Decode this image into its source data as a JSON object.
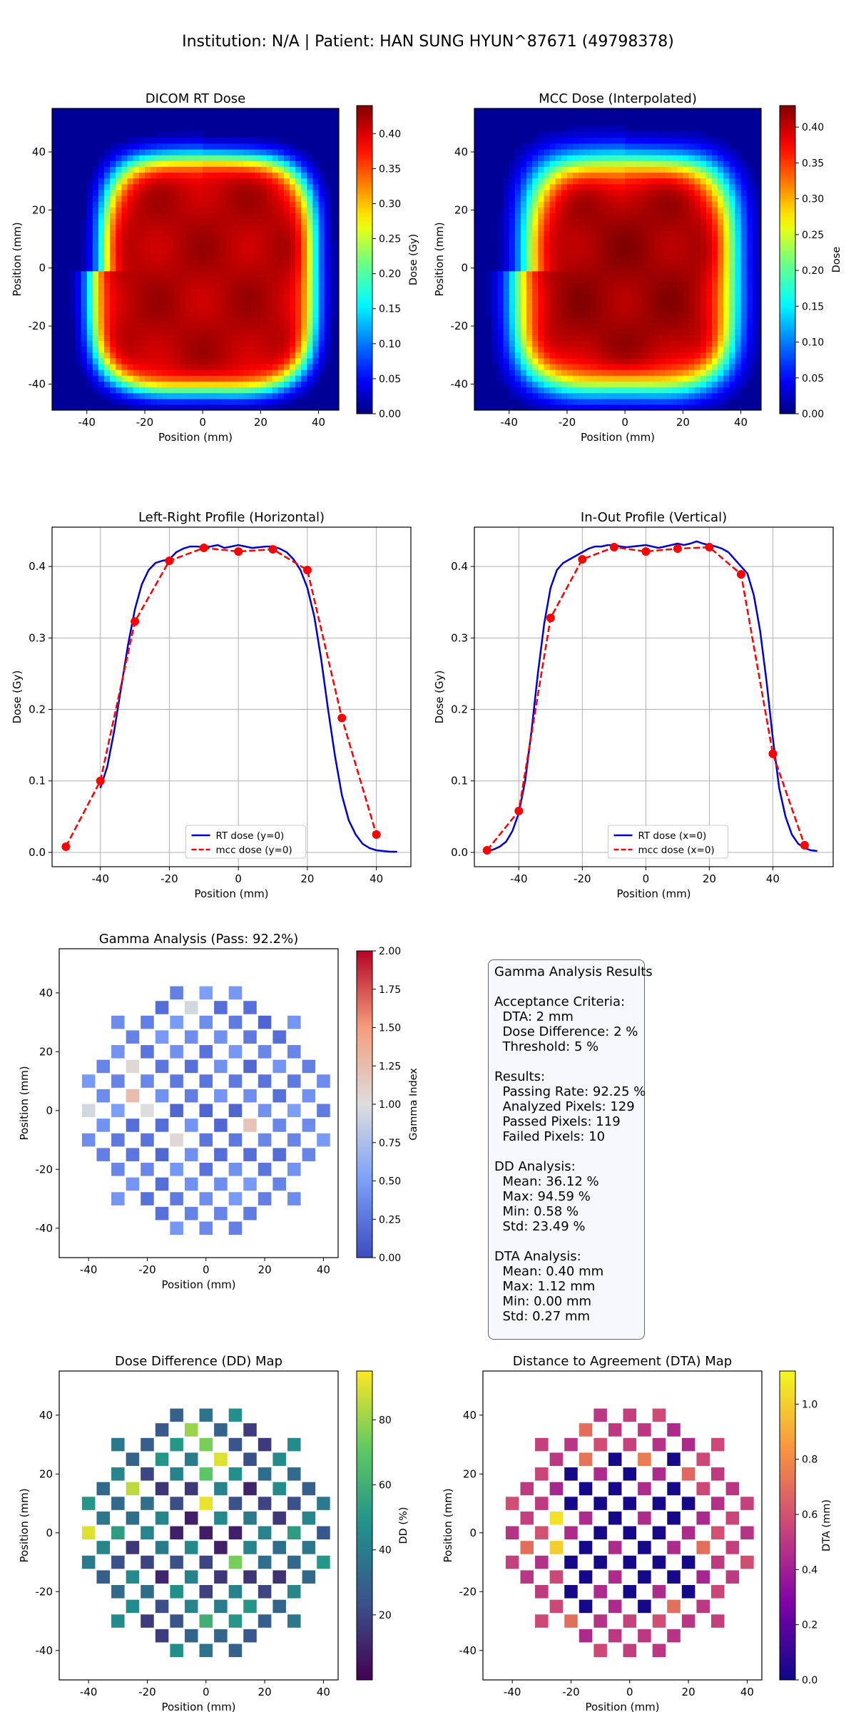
{
  "figure": {
    "suptitle": "Institution: N/A | Patient: HAN SUNG HYUN^87671 (49798378)"
  },
  "stats_box": {
    "lines": [
      "Gamma Analysis Results",
      "",
      "Acceptance Criteria:",
      "  DTA: 2 mm",
      "  Dose Difference: 2 %",
      "  Threshold: 5 %",
      "",
      "Results:",
      "  Passing Rate: 92.25 %",
      "  Analyzed Pixels: 129",
      "  Passed Pixels: 119",
      "  Failed Pixels: 10",
      "",
      "DD Analysis:",
      "  Mean: 36.12 %",
      "  Max: 94.59 %",
      "  Min: 0.58 %",
      "  Std: 23.49 %",
      "",
      "DTA Analysis:",
      "  Mean: 0.40 mm",
      "  Max: 1.12 mm",
      "  Min: 0.00 mm",
      "  Std: 0.27 mm"
    ]
  },
  "chart_data": [
    {
      "id": "rt",
      "type": "heatmap",
      "title": "DICOM RT Dose",
      "xlabel": "Position (mm)",
      "ylabel": "Position (mm)",
      "xlim": [
        -52,
        47
      ],
      "ylim": [
        -49,
        55
      ],
      "xticks": [
        -40,
        -20,
        0,
        20,
        40
      ],
      "yticks": [
        -40,
        -20,
        0,
        20,
        40
      ],
      "colormap": "jet",
      "colorbar": {
        "label": "Dose (Gy)",
        "min": 0,
        "max": 0.44,
        "ticks": [
          "0.00",
          "0.05",
          "0.10",
          "0.15",
          "0.20",
          "0.25",
          "0.30",
          "0.35",
          "0.40"
        ]
      },
      "field": {
        "peak_gy": 0.43,
        "half_width_x_mm": 38,
        "half_width_y_mm": 40,
        "center_mm": [
          0,
          -2
        ],
        "penumbra_mm": 5
      }
    },
    {
      "id": "mcc",
      "type": "heatmap",
      "title": "MCC Dose (Interpolated)",
      "xlabel": "Position (mm)",
      "ylabel": "Position (mm)",
      "xlim": [
        -52,
        47
      ],
      "ylim": [
        -49,
        55
      ],
      "xticks": [
        -40,
        -20,
        0,
        20,
        40
      ],
      "yticks": [
        -40,
        -20,
        0,
        20,
        40
      ],
      "colormap": "jet",
      "colorbar": {
        "label": "Dose",
        "min": 0,
        "max": 0.43,
        "ticks": [
          "0.00",
          "0.05",
          "0.10",
          "0.15",
          "0.20",
          "0.25",
          "0.30",
          "0.35",
          "0.40"
        ]
      },
      "field": {
        "peak_gy": 0.43,
        "half_width_x_mm": 37,
        "half_width_y_mm": 39,
        "center_mm": [
          0,
          -2
        ],
        "penumbra_mm": 7
      }
    },
    {
      "id": "lr",
      "type": "line",
      "title": "Left-Right Profile (Horizontal)",
      "xlabel": "Position (mm)",
      "ylabel": "Dose (Gy)",
      "xlim": [
        -54,
        50
      ],
      "ylim": [
        -0.02,
        0.455
      ],
      "xticks": [
        -40,
        -20,
        0,
        20,
        40
      ],
      "yticks": [
        0.0,
        0.1,
        0.2,
        0.3,
        0.4
      ],
      "yticklabels": [
        "0.0",
        "0.1",
        "0.2",
        "0.3",
        "0.4"
      ],
      "grid": true,
      "legend": "lower center",
      "series": [
        {
          "name": "RT dose (y=0)",
          "color": "#0000cc",
          "style": "solid",
          "x": [
            -40,
            -38,
            -36,
            -34,
            -32,
            -30,
            -28,
            -26,
            -24,
            -22,
            -20,
            -18,
            -16,
            -14,
            -12,
            -10,
            -8,
            -6,
            -4,
            -2,
            0,
            2,
            4,
            6,
            8,
            10,
            12,
            14,
            16,
            18,
            20,
            22,
            24,
            26,
            28,
            30,
            32,
            34,
            36,
            38,
            40,
            42,
            44,
            46
          ],
          "y": [
            0.09,
            0.12,
            0.17,
            0.23,
            0.29,
            0.34,
            0.375,
            0.395,
            0.405,
            0.408,
            0.41,
            0.42,
            0.425,
            0.428,
            0.428,
            0.427,
            0.428,
            0.43,
            0.426,
            0.428,
            0.43,
            0.428,
            0.426,
            0.427,
            0.428,
            0.428,
            0.425,
            0.42,
            0.41,
            0.395,
            0.37,
            0.33,
            0.27,
            0.2,
            0.135,
            0.08,
            0.045,
            0.025,
            0.012,
            0.006,
            0.003,
            0.002,
            0.001,
            0.001
          ]
        },
        {
          "name": "mcc dose (y=0)",
          "color": "#ff0000",
          "style": "dashed",
          "markers": true,
          "x": [
            -50,
            -40,
            -30,
            -20,
            -10,
            0,
            10,
            20,
            30,
            40
          ],
          "y": [
            0.008,
            0.1,
            0.323,
            0.408,
            0.426,
            0.421,
            0.424,
            0.395,
            0.188,
            0.025
          ]
        }
      ]
    },
    {
      "id": "io",
      "type": "line",
      "title": "In-Out Profile (Vertical)",
      "xlabel": "Position (mm)",
      "ylabel": "Dose (Gy)",
      "xlim": [
        -54,
        59
      ],
      "ylim": [
        -0.02,
        0.455
      ],
      "xticks": [
        -40,
        -20,
        0,
        20,
        40
      ],
      "yticks": [
        0.0,
        0.1,
        0.2,
        0.3,
        0.4
      ],
      "yticklabels": [
        "0.0",
        "0.1",
        "0.2",
        "0.3",
        "0.4"
      ],
      "grid": true,
      "legend": "lower center",
      "series": [
        {
          "name": "RT dose (x=0)",
          "color": "#0000cc",
          "style": "solid",
          "x": [
            -50,
            -48,
            -46,
            -44,
            -42,
            -40,
            -38,
            -36,
            -34,
            -32,
            -30,
            -28,
            -26,
            -24,
            -22,
            -20,
            -18,
            -16,
            -14,
            -12,
            -10,
            -8,
            -6,
            -4,
            -2,
            0,
            2,
            4,
            6,
            8,
            10,
            12,
            14,
            16,
            18,
            20,
            22,
            24,
            26,
            28,
            30,
            32,
            34,
            36,
            38,
            40,
            42,
            44,
            46,
            48,
            50,
            52,
            54
          ],
          "y": [
            0.002,
            0.004,
            0.008,
            0.015,
            0.03,
            0.055,
            0.1,
            0.17,
            0.25,
            0.32,
            0.37,
            0.395,
            0.405,
            0.41,
            0.415,
            0.42,
            0.425,
            0.428,
            0.428,
            0.43,
            0.43,
            0.428,
            0.427,
            0.428,
            0.429,
            0.43,
            0.428,
            0.426,
            0.428,
            0.43,
            0.432,
            0.43,
            0.432,
            0.435,
            0.432,
            0.43,
            0.428,
            0.425,
            0.42,
            0.41,
            0.4,
            0.39,
            0.36,
            0.31,
            0.24,
            0.16,
            0.09,
            0.05,
            0.025,
            0.012,
            0.006,
            0.003,
            0.002
          ]
        },
        {
          "name": "mcc dose (x=0)",
          "color": "#ff0000",
          "style": "dashed",
          "markers": true,
          "x": [
            -50,
            -40,
            -30,
            -20,
            -10,
            0,
            10,
            20,
            30,
            40,
            50
          ],
          "y": [
            0.003,
            0.058,
            0.328,
            0.41,
            0.427,
            0.421,
            0.425,
            0.427,
            0.389,
            0.138,
            0.01
          ]
        }
      ]
    },
    {
      "id": "gamma",
      "type": "heatmap",
      "title": "Gamma Analysis (Pass: 92.2%)",
      "xlabel": "Position (mm)",
      "ylabel": "Position (mm)",
      "xlim": [
        -50,
        45
      ],
      "ylim": [
        -50,
        55
      ],
      "xticks": [
        -40,
        -20,
        0,
        20,
        40
      ],
      "yticks": [
        -40,
        -20,
        0,
        20,
        40
      ],
      "colormap": "coolwarm",
      "colorbar": {
        "label": "Gamma Index",
        "min": 0,
        "max": 2,
        "ticks": [
          "0.00",
          "0.25",
          "0.50",
          "0.75",
          "1.00",
          "1.25",
          "1.50",
          "1.75",
          "2.00"
        ]
      },
      "grid_spacing_mm": 5,
      "cell_mm": 4.5,
      "radius_mm": 43,
      "cells": [
        [
          -25,
          35,
          0.12
        ],
        [
          -15,
          35,
          0.2
        ],
        [
          -5,
          35,
          0.18
        ],
        [
          5,
          35,
          0.2
        ],
        [
          20,
          30,
          0.15
        ],
        [
          -30,
          25,
          0.25
        ],
        [
          10,
          25,
          0.45
        ],
        [
          25,
          25,
          0.2
        ],
        [
          -30,
          15,
          0.2
        ],
        [
          -15,
          15,
          0.25
        ],
        [
          0,
          15,
          0.3
        ],
        [
          20,
          15,
          0.25
        ],
        [
          -40,
          5,
          0.35
        ],
        [
          -20,
          5,
          0.25
        ],
        [
          -5,
          5,
          0.3
        ],
        [
          10,
          5,
          0.3
        ],
        [
          30,
          5,
          0.35
        ],
        [
          -15,
          -5,
          0.2
        ],
        [
          0,
          -5,
          0.15
        ],
        [
          15,
          -5,
          0.25
        ],
        [
          -25,
          -15,
          0.25
        ],
        [
          -10,
          -15,
          0.2
        ],
        [
          5,
          -15,
          0.2
        ],
        [
          20,
          -15,
          0.2
        ],
        [
          -15,
          -25,
          0.2
        ],
        [
          0,
          -25,
          0.3
        ],
        [
          -5,
          35,
          0.95
        ],
        [
          0,
          40,
          0.5
        ],
        [
          -10,
          25,
          0.95
        ],
        [
          -5,
          20,
          1.2
        ],
        [
          5,
          20,
          1.05
        ],
        [
          15,
          20,
          1.1
        ],
        [
          -25,
          15,
          1.05
        ],
        [
          -25,
          5,
          1.25
        ],
        [
          5,
          10,
          1.05
        ],
        [
          -40,
          0,
          0.95
        ],
        [
          -20,
          0,
          1.0
        ],
        [
          35,
          0,
          1.0
        ],
        [
          15,
          -5,
          1.2
        ],
        [
          -10,
          -10,
          1.05
        ],
        [
          -25,
          -20,
          1.0
        ],
        [
          0,
          -35,
          1.0
        ]
      ]
    },
    {
      "id": "dd",
      "type": "heatmap",
      "title": "Dose Difference (DD) Map",
      "xlabel": "Position (mm)",
      "ylabel": "Position (mm)",
      "xlim": [
        -50,
        45
      ],
      "ylim": [
        -50,
        55
      ],
      "xticks": [
        -40,
        -20,
        0,
        20,
        40
      ],
      "yticks": [
        -40,
        -20,
        0,
        20,
        40
      ],
      "colormap": "viridis",
      "colorbar": {
        "label": "DD (%)",
        "min": 0,
        "max": 95,
        "ticks": [
          "20",
          "40",
          "60",
          "80"
        ],
        "tick_values": [
          20,
          40,
          60,
          80
        ]
      },
      "grid_spacing_mm": 5,
      "cell_mm": 4.5,
      "radius_mm": 43,
      "cells": [
        [
          -5,
          35,
          80
        ],
        [
          -15,
          30,
          92
        ],
        [
          0,
          30,
          75
        ],
        [
          5,
          25,
          90
        ],
        [
          -25,
          15,
          85
        ],
        [
          0,
          20,
          70
        ],
        [
          -40,
          0,
          90
        ],
        [
          -20,
          5,
          80
        ],
        [
          0,
          10,
          92
        ],
        [
          35,
          0,
          85
        ],
        [
          10,
          -10,
          75
        ],
        [
          15,
          -10,
          90
        ],
        [
          -25,
          -20,
          92
        ],
        [
          25,
          10,
          60
        ],
        [
          0,
          -30,
          60
        ],
        [
          -15,
          -20,
          70
        ]
      ]
    },
    {
      "id": "dta",
      "type": "heatmap",
      "title": "Distance to Agreement (DTA) Map",
      "xlabel": "Position (mm)",
      "ylabel": "Position (mm)",
      "xlim": [
        -50,
        45
      ],
      "ylim": [
        -50,
        55
      ],
      "xticks": [
        -40,
        -20,
        0,
        20,
        40
      ],
      "yticks": [
        -40,
        -20,
        0,
        20,
        40
      ],
      "colormap": "plasma",
      "colorbar": {
        "label": "DTA (mm)",
        "min": 0,
        "max": 1.12,
        "ticks": [
          "0.0",
          "0.2",
          "0.4",
          "0.6",
          "0.8",
          "1.0"
        ],
        "tick_values": [
          0,
          0.2,
          0.4,
          0.6,
          0.8,
          1.0
        ]
      },
      "grid_spacing_mm": 5,
      "cell_mm": 4.5,
      "radius_mm": 43,
      "cells": [
        [
          -25,
          5,
          1.05
        ],
        [
          -25,
          -5,
          1.0
        ],
        [
          -15,
          35,
          0.7
        ],
        [
          5,
          25,
          0.75
        ],
        [
          -35,
          -5,
          0.7
        ],
        [
          25,
          -5,
          0.7
        ],
        [
          -30,
          -15,
          0.75
        ],
        [
          40,
          -15,
          0.7
        ],
        [
          -10,
          -25,
          0.75
        ],
        [
          15,
          -25,
          0.7
        ],
        [
          -15,
          25,
          0.72
        ],
        [
          20,
          20,
          0.68
        ],
        [
          -20,
          -30,
          0.7
        ],
        [
          0,
          -35,
          0.7
        ]
      ]
    }
  ]
}
